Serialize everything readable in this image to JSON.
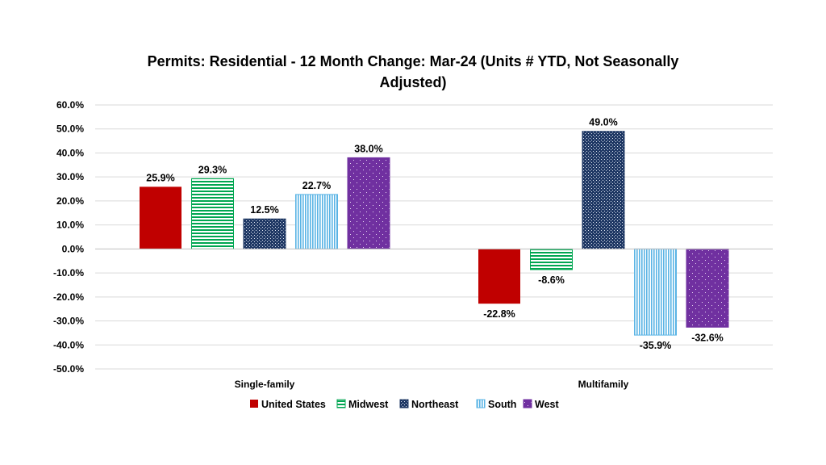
{
  "chart_data": {
    "type": "bar",
    "title_lines": [
      "Permits: Residential - 12 Month Change:  Mar-24 (Units # YTD, Not Seasonally",
      "Adjusted)"
    ],
    "categories": [
      "Single-family",
      "Multifamily"
    ],
    "series": [
      {
        "name": "United States",
        "values": [
          25.9,
          -22.8
        ],
        "labels": [
          "25.9%",
          "-22.8%"
        ],
        "color": "#c00000",
        "pattern": "solid"
      },
      {
        "name": "Midwest",
        "values": [
          29.3,
          -8.6
        ],
        "labels": [
          "29.3%",
          "-8.6%"
        ],
        "color": "#00a651",
        "pattern": "horizontal-lines"
      },
      {
        "name": "Northeast",
        "values": [
          12.5,
          49.0
        ],
        "labels": [
          "12.5%",
          "49.0%"
        ],
        "color": "#1f3864",
        "pattern": "dots-dense"
      },
      {
        "name": "South",
        "values": [
          22.7,
          -35.9
        ],
        "labels": [
          "22.7%",
          "-35.9%"
        ],
        "color": "#5ab4e5",
        "pattern": "vertical-lines"
      },
      {
        "name": "West",
        "values": [
          38.0,
          -32.6
        ],
        "labels": [
          "38.0%",
          "-32.6%"
        ],
        "color": "#7030a0",
        "pattern": "dots-sparse"
      }
    ],
    "ylim": [
      -50,
      60
    ],
    "y_ticks": [
      60,
      50,
      40,
      30,
      20,
      10,
      0,
      -10,
      -20,
      -30,
      -40,
      -50
    ],
    "y_tick_labels": [
      "60.0%",
      "50.0%",
      "40.0%",
      "30.0%",
      "20.0%",
      "10.0%",
      "0.0%",
      "-10.0%",
      "-20.0%",
      "-30.0%",
      "-40.0%",
      "-50.0%"
    ],
    "grid": true,
    "legend_position": "bottom",
    "xlabel": "",
    "ylabel": ""
  }
}
